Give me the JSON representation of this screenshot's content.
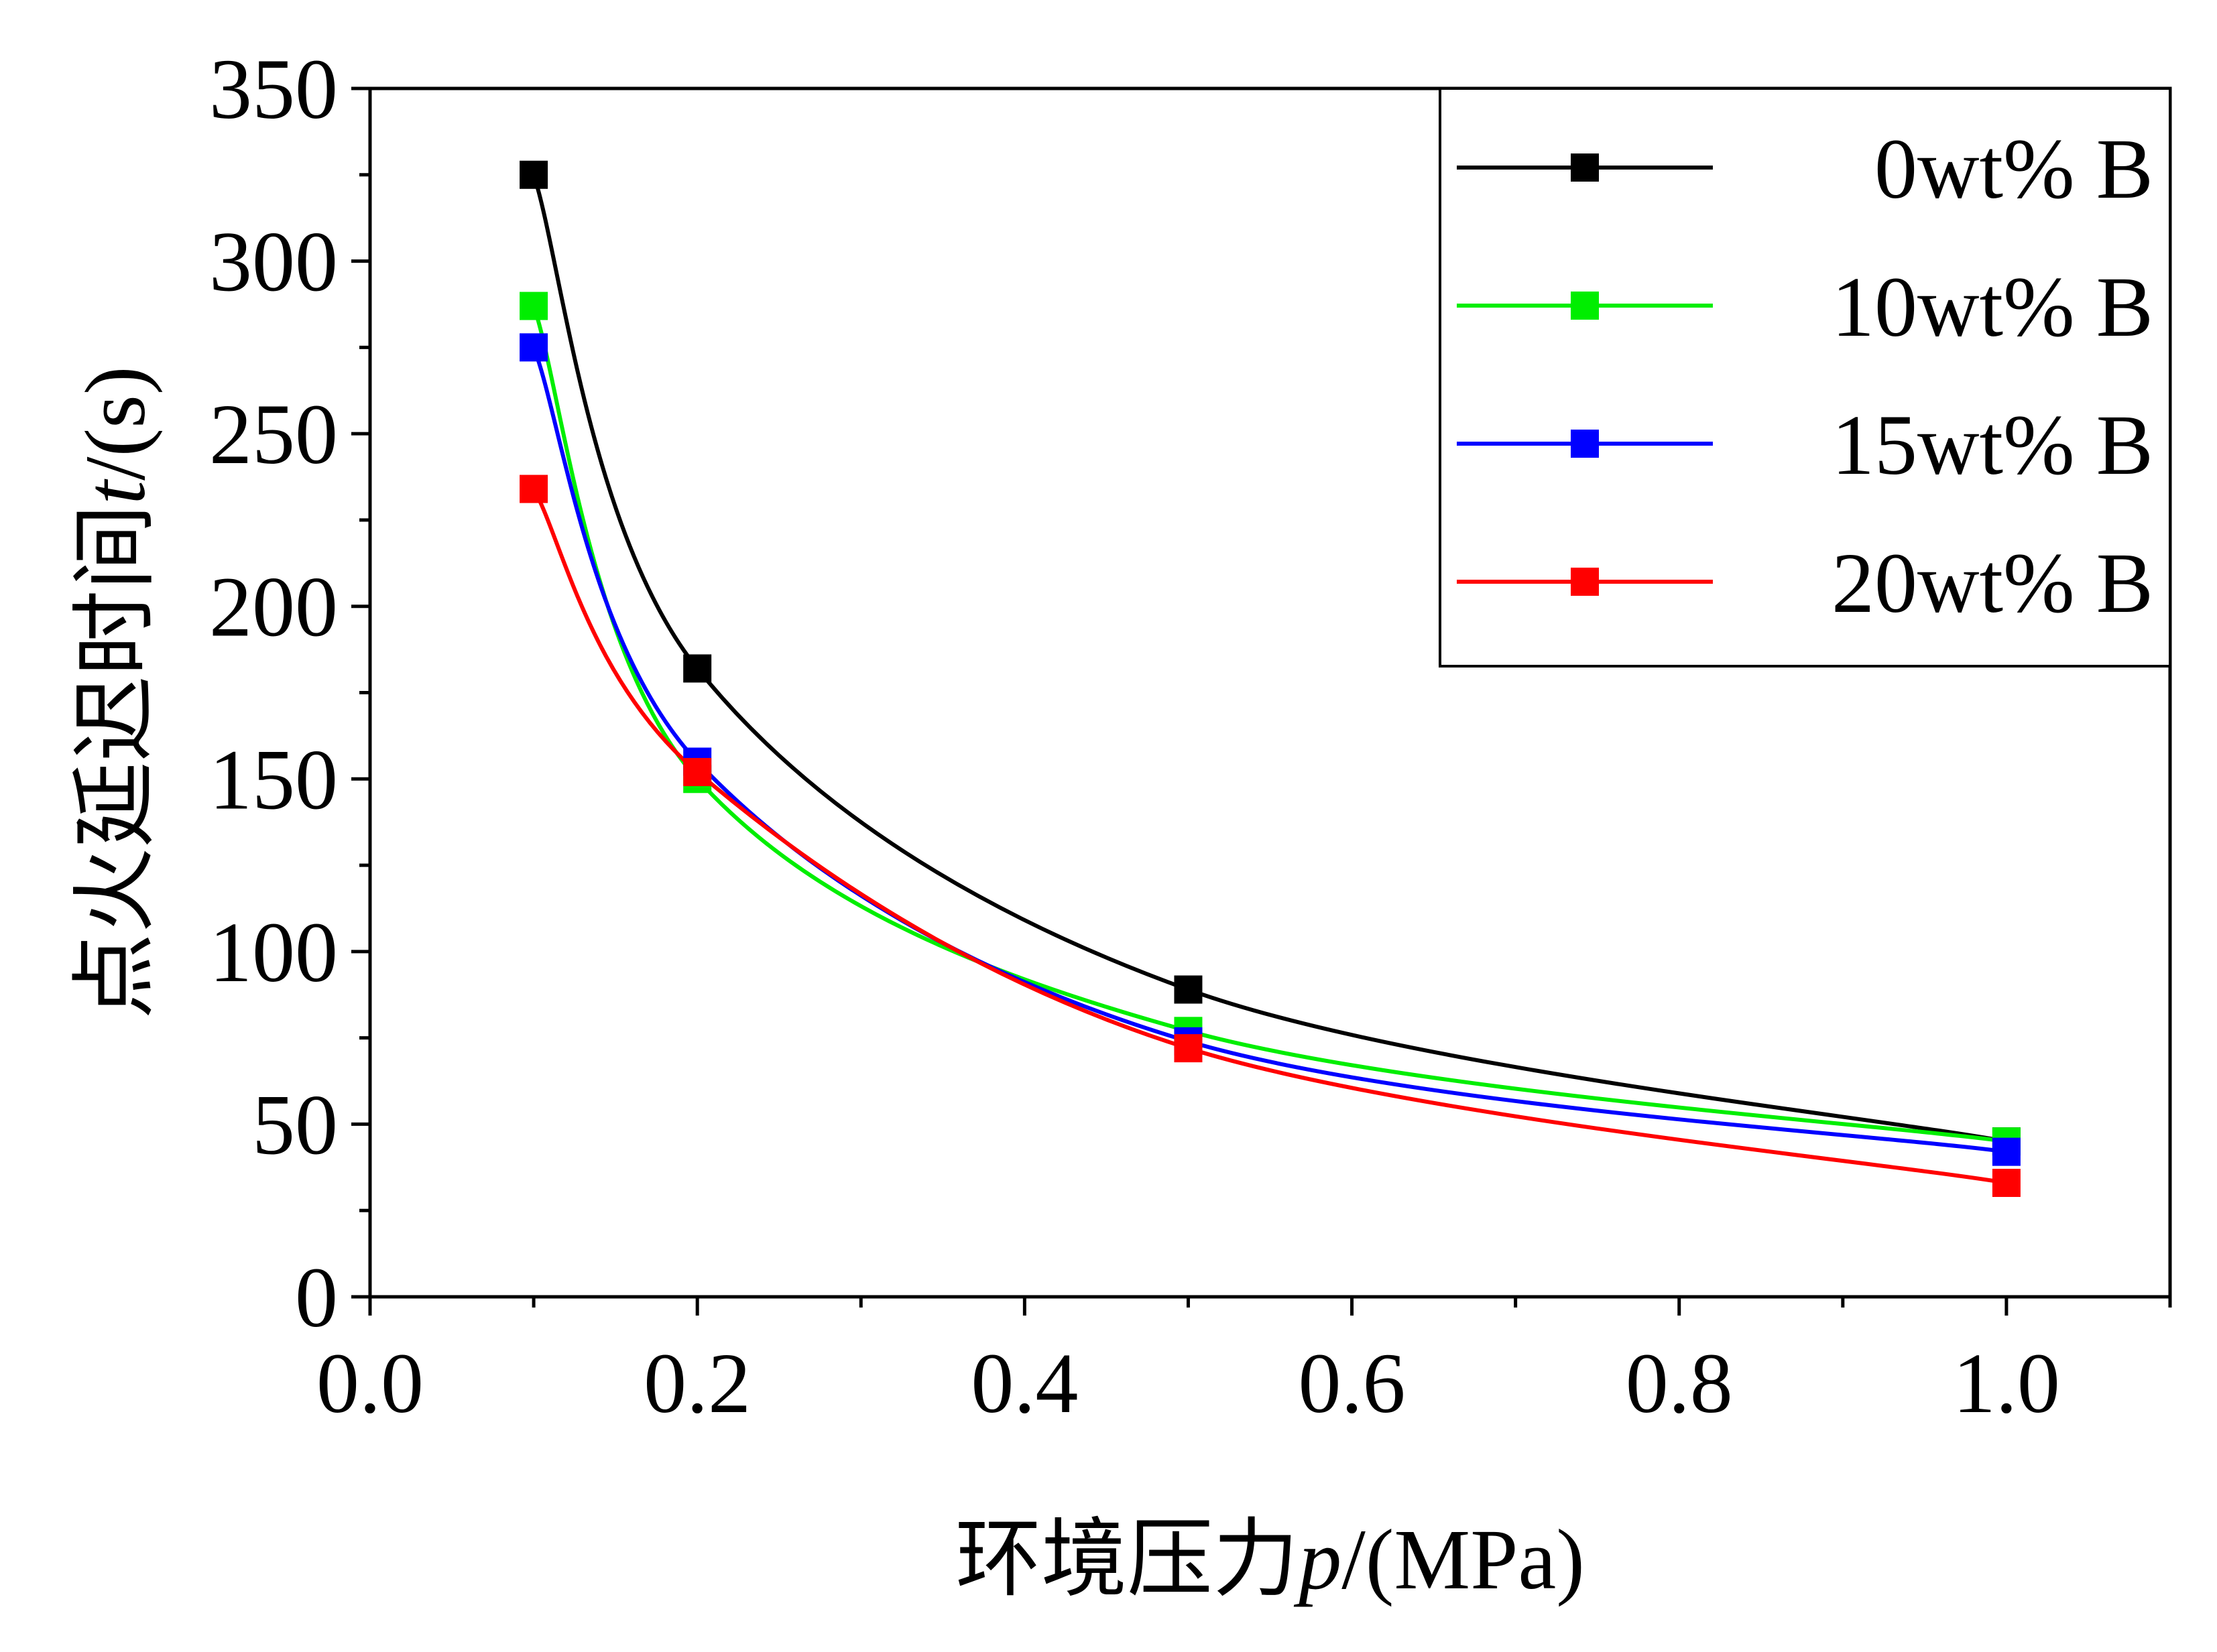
{
  "chart_data": {
    "type": "line",
    "xlabel": {
      "prefix": "环境压力",
      "var": "p",
      "suffix": "/(MPa)"
    },
    "ylabel": {
      "prefix": "点火延迟时间",
      "var": "t",
      "suffix": "/(s)"
    },
    "xlim": [
      0.0,
      1.1
    ],
    "ylim": [
      0,
      350
    ],
    "xticks": [
      0.0,
      0.2,
      0.4,
      0.6,
      0.8,
      1.0
    ],
    "xtick_labels": [
      "0.0",
      "0.2",
      "0.4",
      "0.6",
      "0.8",
      "1.0"
    ],
    "yticks": [
      0,
      50,
      100,
      150,
      200,
      250,
      300,
      350
    ],
    "ytick_labels": [
      "0",
      "50",
      "100",
      "150",
      "200",
      "250",
      "300",
      "350"
    ],
    "grid": false,
    "legend_position": "top-right",
    "x": [
      0.1,
      0.2,
      0.5,
      1.0
    ],
    "series": [
      {
        "name": "0wt% B",
        "color": "#000000",
        "values": [
          325,
          182,
          89,
          45
        ]
      },
      {
        "name": "10wt% B",
        "color": "#00ee00",
        "values": [
          287,
          150,
          77,
          45
        ]
      },
      {
        "name": "15wt% B",
        "color": "#0000ff",
        "values": [
          275,
          155,
          74,
          42
        ]
      },
      {
        "name": "20wt% B",
        "color": "#ff0000",
        "values": [
          234,
          152,
          72,
          33
        ]
      }
    ]
  }
}
